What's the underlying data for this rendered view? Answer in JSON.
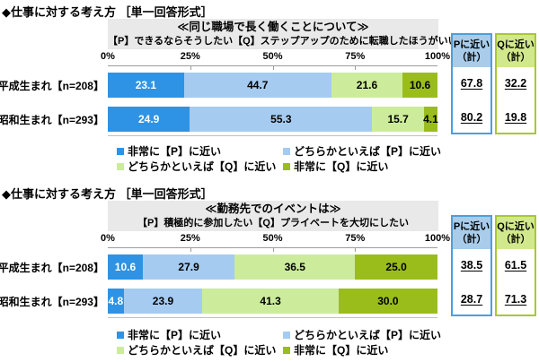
{
  "colors": {
    "series": [
      "#2E93E4",
      "#A6CBF0",
      "#CCEC9C",
      "#9ABD1C"
    ],
    "p_border": "#4D9FDC",
    "p_fill": "#A8CCEA",
    "q_border": "#A8C832",
    "q_fill": "#D2E88C",
    "header_bg": "#E9E9E9"
  },
  "legend": [
    {
      "label": "非常に【P】に近い"
    },
    {
      "label": "どちらかといえば【P】に近い"
    },
    {
      "label": "どちらかといえば【Q】に近い"
    },
    {
      "label": "非常に【Q】に近い"
    }
  ],
  "charts": [
    {
      "section_title": "◆仕事に対する考え方 ［単一回答形式］",
      "title": "≪同じ職場で長く働くことについて≫",
      "subtitle": "【P】できるならそうしたい【Q】ステップアップのために転職したほうがいい",
      "axis_ticks": [
        "0%",
        "25%",
        "50%",
        "75%",
        "100%"
      ],
      "p_header_1": "Pに近い",
      "p_header_2": "（計）",
      "q_header_1": "Qに近い",
      "q_header_2": "（計）",
      "rows": [
        {
          "label": "平成生まれ【n=208】",
          "segments": [
            "23.1",
            "44.7",
            "21.6",
            "10.6"
          ],
          "p_total": "67.8",
          "q_total": "32.2"
        },
        {
          "label": "昭和生まれ【n=293】",
          "segments": [
            "24.9",
            "55.3",
            "15.7",
            "4.1"
          ],
          "p_total": "80.2",
          "q_total": "19.8"
        }
      ]
    },
    {
      "section_title": "◆仕事に対する考え方 ［単一回答形式］",
      "title": "≪勤務先でのイベントは≫",
      "subtitle": "【P】積極的に参加したい【Q】プライベートを大切にしたい",
      "axis_ticks": [
        "0%",
        "25%",
        "50%",
        "75%",
        "100%"
      ],
      "p_header_1": "Pに近い",
      "p_header_2": "（計）",
      "q_header_1": "Qに近い",
      "q_header_2": "（計）",
      "rows": [
        {
          "label": "平成生まれ【n=208】",
          "segments": [
            "10.6",
            "27.9",
            "36.5",
            "25.0"
          ],
          "p_total": "38.5",
          "q_total": "61.5"
        },
        {
          "label": "昭和生まれ【n=293】",
          "segments": [
            "4.8",
            "23.9",
            "41.3",
            "30.0"
          ],
          "p_total": "28.7",
          "q_total": "71.3"
        }
      ]
    }
  ],
  "chart_data": [
    {
      "type": "bar",
      "stacked": true,
      "orientation": "horizontal",
      "title": "≪同じ職場で長く働くことについて≫",
      "subtitle": "【P】できるならそうしたい【Q】ステップアップのために転職したほうがいい",
      "section_title": "◆仕事に対する考え方 ［単一回答形式］",
      "categories": [
        "平成生まれ【n=208】",
        "昭和生まれ【n=293】"
      ],
      "series": [
        {
          "name": "非常に【P】に近い",
          "values": [
            23.1,
            24.9
          ]
        },
        {
          "name": "どちらかといえば【P】に近い",
          "values": [
            44.7,
            55.3
          ]
        },
        {
          "name": "どちらかといえば【Q】に近い",
          "values": [
            21.6,
            15.7
          ]
        },
        {
          "name": "非常に【Q】に近い",
          "values": [
            10.6,
            4.1
          ]
        }
      ],
      "totals": {
        "Pに近い（計）": [
          67.8,
          80.2
        ],
        "Qに近い（計）": [
          32.2,
          19.8
        ]
      },
      "xlim": [
        0,
        100
      ],
      "x_ticks": [
        "0%",
        "25%",
        "50%",
        "75%",
        "100%"
      ],
      "legend_position": "bottom",
      "grid": false
    },
    {
      "type": "bar",
      "stacked": true,
      "orientation": "horizontal",
      "title": "≪勤務先でのイベントは≫",
      "subtitle": "【P】積極的に参加したい【Q】プライベートを大切にしたい",
      "section_title": "◆仕事に対する考え方 ［単一回答形式］",
      "categories": [
        "平成生まれ【n=208】",
        "昭和生まれ【n=293】"
      ],
      "series": [
        {
          "name": "非常に【P】に近い",
          "values": [
            10.6,
            4.8
          ]
        },
        {
          "name": "どちらかといえば【P】に近い",
          "values": [
            27.9,
            23.9
          ]
        },
        {
          "name": "どちらかといえば【Q】に近い",
          "values": [
            36.5,
            41.3
          ]
        },
        {
          "name": "非常に【Q】に近い",
          "values": [
            25.0,
            30.0
          ]
        }
      ],
      "totals": {
        "Pに近い（計）": [
          38.5,
          28.7
        ],
        "Qに近い（計）": [
          61.5,
          71.3
        ]
      },
      "xlim": [
        0,
        100
      ],
      "x_ticks": [
        "0%",
        "25%",
        "50%",
        "75%",
        "100%"
      ],
      "legend_position": "bottom",
      "grid": false
    }
  ]
}
